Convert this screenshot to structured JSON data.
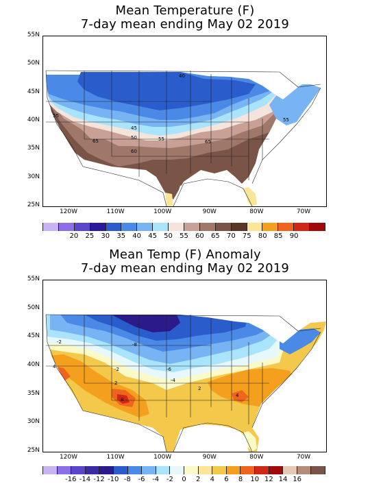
{
  "top": {
    "title_line1": "Mean Temperature (F)",
    "title_line2": "7-day mean ending May 02 2019",
    "lat_labels": [
      "55N",
      "50N",
      "45N",
      "40N",
      "35N",
      "30N",
      "25N"
    ],
    "lon_labels": [
      "120W",
      "110W",
      "100W",
      "90W",
      "80W",
      "70W"
    ],
    "contour_labels": [
      "40",
      "45",
      "50",
      "55",
      "55",
      "60",
      "65",
      "65",
      "55"
    ],
    "colorbar": {
      "colors": [
        "#c8b4f4",
        "#8c6ee6",
        "#5a46cc",
        "#2a1a9a",
        "#2a5ccc",
        "#4a8ae6",
        "#78b4f4",
        "#aae4fc",
        "#f4e4dc",
        "#c8a096",
        "#a0786a",
        "#7a5446",
        "#5a3626",
        "#fae696",
        "#f4a01e",
        "#f0641e",
        "#d02814",
        "#a00a0a"
      ],
      "ticks": [
        "20",
        "25",
        "30",
        "35",
        "40",
        "45",
        "50",
        "55",
        "60",
        "65",
        "70",
        "75",
        "80",
        "85",
        "90"
      ]
    }
  },
  "bottom": {
    "title_line1": "Mean Temp (F) Anomaly",
    "title_line2": "7-day mean ending May 02 2019",
    "lat_labels": [
      "55N",
      "50N",
      "45N",
      "40N",
      "35N",
      "30N",
      "25N"
    ],
    "lon_labels": [
      "120W",
      "110W",
      "100W",
      "90W",
      "80W",
      "70W"
    ],
    "contour_labels": [
      "-2",
      "-8",
      "-6",
      "-4",
      "-2",
      "2",
      "2",
      "4",
      "8",
      "4"
    ],
    "colorbar": {
      "colors": [
        "#c8b4f4",
        "#8c6ee6",
        "#5a46cc",
        "#3a2aa8",
        "#2a1a8a",
        "#2a5ccc",
        "#4a8ae6",
        "#78b4f4",
        "#aae4fc",
        "#e6f8fc",
        "#fafac8",
        "#fae696",
        "#f4c84a",
        "#f4a01e",
        "#f0641e",
        "#d02814",
        "#a00a0a",
        "#e6c8b4",
        "#b48c78",
        "#7a5446"
      ],
      "ticks": [
        "-16",
        "-14",
        "-12",
        "-10",
        "-8",
        "-6",
        "-4",
        "-2",
        "0",
        "2",
        "4",
        "6",
        "8",
        "10",
        "12",
        "14",
        "16"
      ]
    }
  }
}
